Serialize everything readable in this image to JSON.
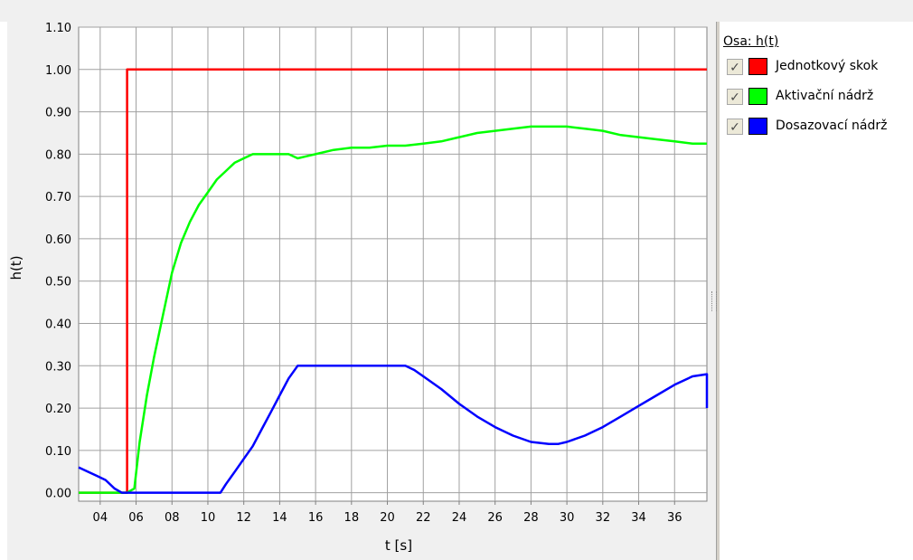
{
  "legend": {
    "title": "Osa: h(t)",
    "items": [
      {
        "label": "Jednotkový skok",
        "color": "#ff0000",
        "checked": true
      },
      {
        "label": "Aktivační nádrž",
        "color": "#00ff00",
        "checked": true
      },
      {
        "label": "Dosazovací nádrž",
        "color": "#0000ff",
        "checked": true
      }
    ]
  },
  "chart_data": {
    "type": "line",
    "xlabel": "t [s]",
    "ylabel": "h(t)",
    "xlim": [
      2.8,
      37.8
    ],
    "ylim": [
      -0.02,
      1.1
    ],
    "grid": true,
    "x_tick_labels": [
      "04",
      "06",
      "08",
      "10",
      "12",
      "14",
      "16",
      "18",
      "20",
      "22",
      "24",
      "26",
      "28",
      "30",
      "32",
      "34",
      "36"
    ],
    "x_ticks": [
      4,
      6,
      8,
      10,
      12,
      14,
      16,
      18,
      20,
      22,
      24,
      26,
      28,
      30,
      32,
      34,
      36
    ],
    "y_tick_labels": [
      "0.00",
      "0.10",
      "0.20",
      "0.30",
      "0.40",
      "0.50",
      "0.60",
      "0.70",
      "0.80",
      "0.90",
      "1.00",
      "1.10"
    ],
    "y_ticks": [
      0,
      0.1,
      0.2,
      0.3,
      0.4,
      0.5,
      0.6,
      0.7,
      0.8,
      0.9,
      1.0,
      1.1
    ],
    "series": [
      {
        "name": "Jednotkový skok",
        "color": "#ff0000",
        "x": [
          2.8,
          5.2,
          5.2,
          5.5,
          5.5,
          37.8
        ],
        "y": [
          0,
          0,
          0.0,
          0.0,
          1.0,
          1.0
        ]
      },
      {
        "name": "Aktivační nádrž",
        "color": "#00ff00",
        "x": [
          2.8,
          5.5,
          5.9,
          6.2,
          6.6,
          7.0,
          7.5,
          8.0,
          8.5,
          9.0,
          9.5,
          10.0,
          10.5,
          11.0,
          11.5,
          12.0,
          12.5,
          13.0,
          13.5,
          14.0,
          14.5,
          15.0,
          15.5,
          16.0,
          17.0,
          18.0,
          19.0,
          20.0,
          21.0,
          22.0,
          23.0,
          24.0,
          25.0,
          26.0,
          27.0,
          28.0,
          29.0,
          30.0,
          31.0,
          32.0,
          33.0,
          34.0,
          35.0,
          36.0,
          37.0,
          37.8
        ],
        "y": [
          0.0,
          0.0,
          0.01,
          0.12,
          0.23,
          0.32,
          0.42,
          0.52,
          0.59,
          0.64,
          0.68,
          0.71,
          0.74,
          0.76,
          0.78,
          0.79,
          0.8,
          0.8,
          0.8,
          0.8,
          0.8,
          0.79,
          0.795,
          0.8,
          0.81,
          0.815,
          0.815,
          0.82,
          0.82,
          0.825,
          0.83,
          0.84,
          0.85,
          0.855,
          0.86,
          0.865,
          0.865,
          0.865,
          0.86,
          0.855,
          0.845,
          0.84,
          0.835,
          0.83,
          0.825,
          0.825
        ]
      },
      {
        "name": "Dosazovací nádrž",
        "color": "#0000ff",
        "x": [
          2.8,
          3.3,
          3.8,
          4.3,
          4.8,
          5.2,
          5.5,
          6.0,
          8.0,
          10.0,
          10.7,
          11.0,
          11.5,
          12.0,
          12.5,
          13.0,
          13.5,
          14.0,
          14.5,
          15.0,
          16.0,
          18.0,
          20.0,
          21.0,
          21.5,
          22.0,
          23.0,
          24.0,
          25.0,
          26.0,
          27.0,
          28.0,
          29.0,
          29.5,
          30.0,
          31.0,
          32.0,
          33.0,
          34.0,
          35.0,
          36.0,
          37.0,
          37.8,
          37.8
        ],
        "y": [
          0.06,
          0.05,
          0.04,
          0.03,
          0.01,
          0.0,
          0.0,
          0.0,
          0.0,
          0.0,
          0.0,
          0.02,
          0.05,
          0.08,
          0.11,
          0.15,
          0.19,
          0.23,
          0.27,
          0.3,
          0.3,
          0.3,
          0.3,
          0.3,
          0.29,
          0.275,
          0.245,
          0.21,
          0.18,
          0.155,
          0.135,
          0.12,
          0.115,
          0.115,
          0.12,
          0.135,
          0.155,
          0.18,
          0.205,
          0.23,
          0.255,
          0.275,
          0.28,
          0.2
        ]
      }
    ]
  }
}
